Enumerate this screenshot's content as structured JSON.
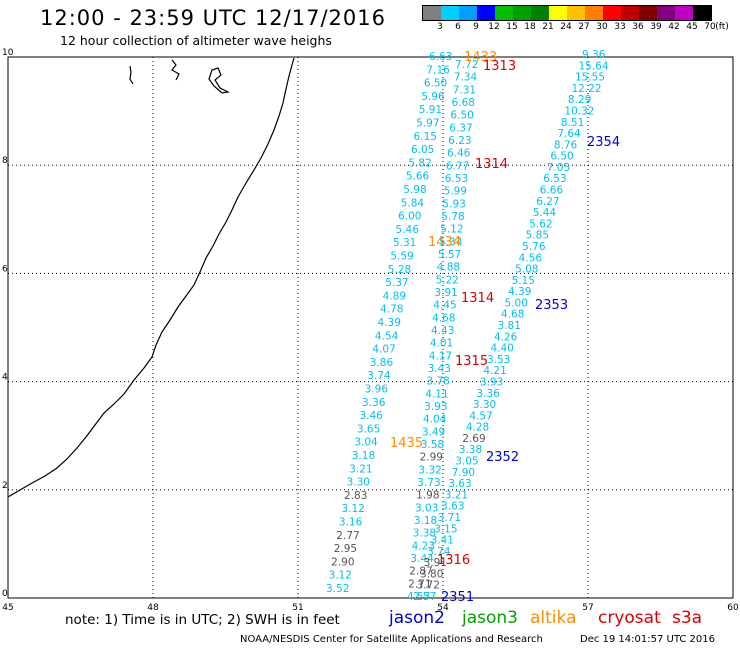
{
  "title": "12:00 - 23:59 UTC 12/17/2016",
  "subtitle": "12 hour collection of altimeter wave heighs",
  "legend": {
    "labels": [
      "3",
      "6",
      "9",
      "12",
      "15",
      "18",
      "21",
      "24",
      "27",
      "30",
      "33",
      "36",
      "39",
      "42",
      "45",
      "70",
      "(ft)"
    ],
    "colors": [
      "#808080",
      "#00d0ff",
      "#00a0ff",
      "#0000ff",
      "#00c000",
      "#00a000",
      "#008000",
      "#ffff00",
      "#ffc000",
      "#ff8000",
      "#ff0000",
      "#c00000",
      "#800000",
      "#800080",
      "#c000c0",
      "#000000"
    ]
  },
  "axes": {
    "x_ticks": [
      "45",
      "48",
      "51",
      "54",
      "57",
      "60"
    ],
    "y_ticks": [
      "0",
      "2",
      "4",
      "6",
      "8",
      "10"
    ]
  },
  "colors": {
    "cyan": "#00c0f0",
    "blue": "#0000dd",
    "red": "#dd0000",
    "orange": "#ff8c00",
    "green": "#00a000",
    "gray": "#555555"
  },
  "col1_values": [
    "3.52",
    "3.12",
    "2.90",
    "2.95",
    "2.77",
    "3.16",
    "3.12",
    "2.83",
    "3.30",
    "3.21",
    "3.18",
    "3.04",
    "3.65",
    "3.46",
    "3.36",
    "3.96",
    "3.74",
    "3.86",
    "4.07",
    "4.54",
    "4.39",
    "4.78",
    "4.89",
    "5.37",
    "5.28",
    "5.59",
    "5.31",
    "5.46",
    "6.00",
    "5.84",
    "5.98",
    "5.66",
    "5.82",
    "6.05",
    "6.15",
    "5.97",
    "5.91",
    "5.96",
    "6.50",
    "7.16",
    "6.63"
  ],
  "col2_values": [
    "4.57",
    "2.71",
    "2.87",
    "3.44",
    "4.23",
    "3.38",
    "3.18",
    "3.03",
    "1.98",
    "3.73",
    "3.32",
    "2.99",
    "3.58",
    "3.49",
    "4.04",
    "3.93",
    "4.11",
    "3.78",
    "3.43",
    "4.17",
    "4.01",
    "4.43",
    "4.68",
    "4.45",
    "3.91",
    "5.22",
    "4.88",
    "5.57",
    "5.34",
    "5.12",
    "5.78",
    "5.93",
    "5.99",
    "6.53",
    "6.77",
    "6.46",
    "6.23",
    "6.37",
    "6.50",
    "6.68",
    "7.31",
    "7.34",
    "7.72"
  ],
  "col3_values": [
    "2.57",
    "3.72",
    "3.80",
    "3.91",
    "3.74",
    "3.41",
    "3.15",
    "3.71",
    "3.63",
    "3.21",
    "3.63",
    "7.90",
    "3.05",
    "3.38",
    "2.69",
    "4.28",
    "4.57",
    "3.30",
    "3.36",
    "3.93",
    "4.21",
    "3.53",
    "4.40",
    "4.26",
    "3.81",
    "4.68",
    "5.00",
    "4.39",
    "5.15",
    "5.08",
    "4.56",
    "5.76",
    "5.85",
    "5.62",
    "5.44",
    "6.27",
    "6.66",
    "6.53",
    "7.05",
    "6.50",
    "8.76",
    "7.64",
    "8.51",
    "10.32",
    "8.29",
    "12.22",
    "15.55",
    "15.64",
    "9.36"
  ],
  "pass_labels": [
    {
      "text": "1433",
      "sat": "altika"
    },
    {
      "text": "1313",
      "sat": "cryosat"
    },
    {
      "text": "2354",
      "sat": "jason2"
    },
    {
      "text": "1314",
      "sat": "cryosat"
    },
    {
      "text": "1434",
      "sat": "altika"
    },
    {
      "text": "1314",
      "sat": "cryosat"
    },
    {
      "text": "2353",
      "sat": "jason2"
    },
    {
      "text": "1315",
      "sat": "cryosat"
    },
    {
      "text": "1435",
      "sat": "altika"
    },
    {
      "text": "2352",
      "sat": "jason2"
    },
    {
      "text": "1316",
      "sat": "cryosat"
    },
    {
      "text": "2351",
      "sat": "jason2"
    }
  ],
  "note": "note: 1) Time is in UTC; 2) SWH is in feet",
  "satellites": [
    {
      "name": "jason2",
      "color": "#0000dd"
    },
    {
      "name": "jason3",
      "color": "#00a000"
    },
    {
      "name": "altika",
      "color": "#ff8c00"
    },
    {
      "name": "cryosat",
      "color": "#dd0000"
    },
    {
      "name": "s3a",
      "color": "#dd0000"
    }
  ],
  "footer_left": "NOAA/NESDIS Center for Satellite Applications and Research",
  "footer_right": "Dec 19 14:01:57 UTC 2016"
}
